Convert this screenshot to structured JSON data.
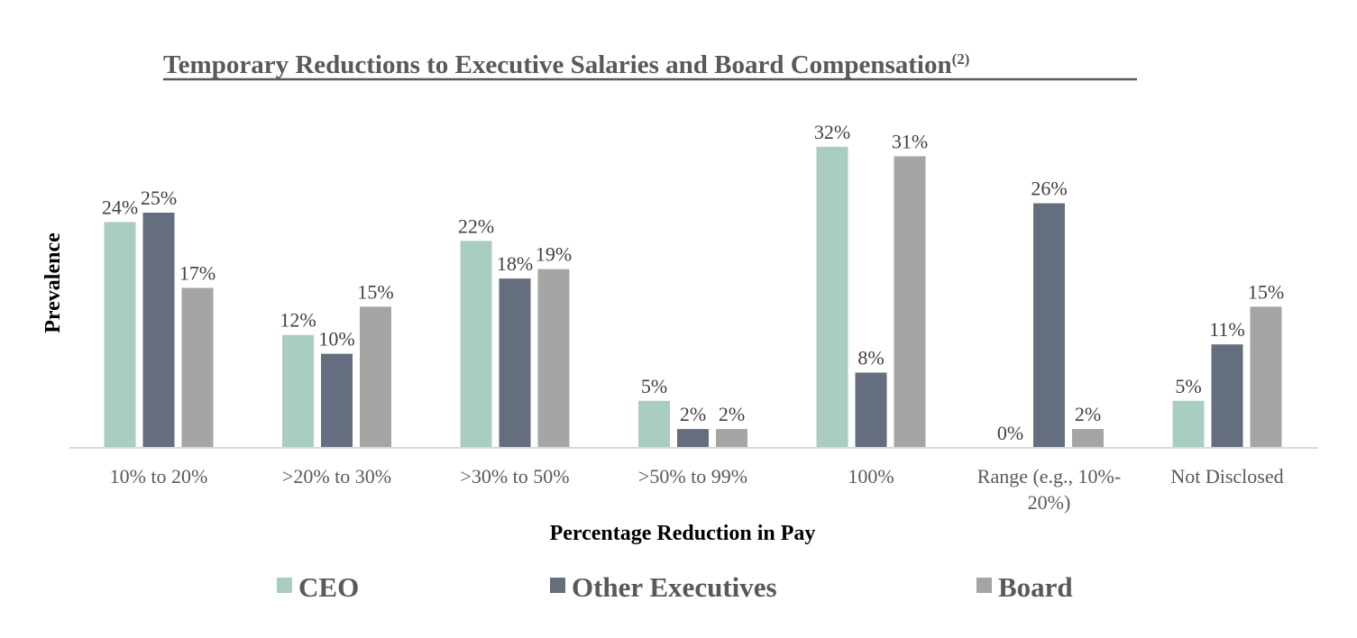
{
  "chart_data": {
    "type": "bar",
    "title": "Temporary Reductions to Executive Salaries and Board Compensation",
    "title_superscript": "(2)",
    "xlabel": "Percentage Reduction in Pay",
    "ylabel": "Prevalence",
    "ylim": [
      0,
      32
    ],
    "grid": false,
    "legend_position": "bottom",
    "categories": [
      [
        "10% to 20%"
      ],
      [
        ">20% to 30%"
      ],
      [
        ">30% to 50%"
      ],
      [
        ">50% to 99%"
      ],
      [
        "100%"
      ],
      [
        "Range (e.g., 10%-",
        "20%)"
      ],
      [
        "Not Disclosed"
      ]
    ],
    "category_names": [
      "10% to 20%",
      ">20% to 30%",
      ">30% to 50%",
      ">50% to 99%",
      "100%",
      "Range (e.g., 10%-20%)",
      "Not Disclosed"
    ],
    "series": [
      {
        "name": "CEO",
        "color": "#A9CDBF",
        "values": [
          24,
          12,
          22,
          5,
          32,
          0,
          5
        ],
        "labels": [
          "24%",
          "12%",
          "22%",
          "5%",
          "32%",
          "0%",
          "5%"
        ]
      },
      {
        "name": "Other Executives",
        "color": "#646E7E",
        "values": [
          25,
          10,
          18,
          2,
          8,
          26,
          11
        ],
        "labels": [
          "25%",
          "10%",
          "18%",
          "2%",
          "8%",
          "26%",
          "11%"
        ]
      },
      {
        "name": "Board",
        "color": "#A3A6A2",
        "values": [
          17,
          15,
          19,
          2,
          31,
          2,
          15
        ],
        "labels": [
          "17%",
          "15%",
          "19%",
          "2%",
          "31%",
          "2%",
          "15%"
        ]
      }
    ],
    "colors": {
      "title": "#595959",
      "axis_line": "#D9D9D9",
      "data_label": "#404040",
      "tick_label": "#595959",
      "axis_title": "#000000",
      "legend_text": "#595959"
    }
  }
}
